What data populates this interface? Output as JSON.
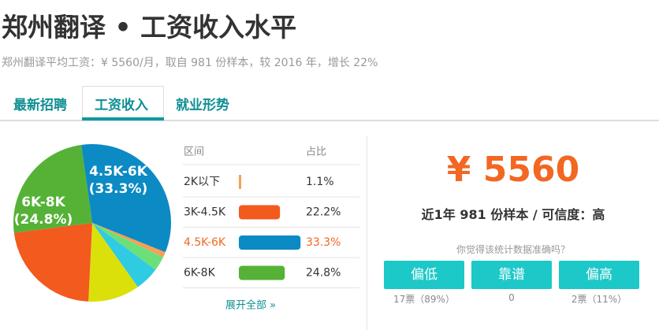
{
  "header": {
    "title": "郑州翻译 • 工资收入水平",
    "subtitle": "郑州翻译平均工资：¥ 5560/月，取自 981 份样本，较 2016 年，增长 22%"
  },
  "tabs": [
    "最新招聘",
    "工资收入",
    "就业形势"
  ],
  "chart_data": {
    "type": "pie",
    "categories": [
      "2K以下",
      "3K-4.5K",
      "4.5K-6K",
      "6K-8K",
      null,
      null,
      null
    ],
    "values": [
      1.1,
      22.2,
      33.3,
      24.8,
      3,
      5,
      10.6
    ],
    "value_labels": [
      "1.1%",
      "22.2%",
      "33.3%",
      "24.8%",
      null,
      null,
      null
    ],
    "pie_labels": [
      null,
      null,
      "(33.3%)",
      "(24.8%)",
      null,
      null,
      null
    ],
    "colors": [
      "#f4a055",
      "#f25a1e",
      "#0b8ac4",
      "#55b236",
      "#6be07a",
      "#2fcbe2",
      "#dbe00b"
    ]
  },
  "table": {
    "headers": [
      "区间",
      "占比"
    ],
    "more": "展开全部 »"
  },
  "salary": {
    "amount": "¥ 5560",
    "note": "近1年 981 份样本 / 可信度：高",
    "question": "你觉得该统计数据准确吗？",
    "votes": [
      {
        "label": "偏低",
        "count": "17票（89%）"
      },
      {
        "label": "靠谱",
        "count": "0"
      },
      {
        "label": "偏高",
        "count": "2票（11%）"
      }
    ]
  }
}
